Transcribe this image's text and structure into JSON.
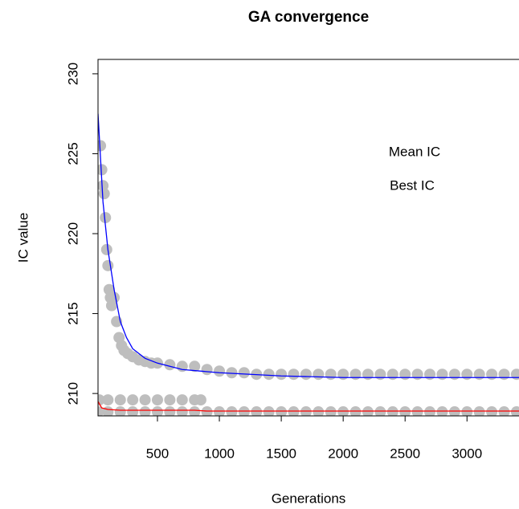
{
  "chart_data": {
    "type": "line",
    "title": "GA convergence",
    "xlabel": "Generations",
    "ylabel": "IC value",
    "xlim": [
      20,
      3420
    ],
    "ylim": [
      208.6,
      230.9
    ],
    "xticks": [
      500,
      1000,
      1500,
      2000,
      2500,
      3000
    ],
    "yticks": [
      210,
      215,
      220,
      225,
      230
    ],
    "series": [
      {
        "name": "Mean IC",
        "color": "#0000ff",
        "x": [
          20,
          60,
          100,
          150,
          200,
          250,
          300,
          400,
          500,
          700,
          1000,
          1500,
          2000,
          2500,
          3000,
          3420
        ],
        "values": [
          227.5,
          222,
          219,
          216.5,
          214.5,
          213.5,
          212.8,
          212.2,
          211.9,
          211.5,
          211.3,
          211.1,
          211.0,
          211.0,
          211.0,
          211.0
        ]
      },
      {
        "name": "Best IC",
        "color": "#ff0000",
        "x": [
          20,
          50,
          100,
          200,
          400,
          800,
          900,
          1500,
          3420
        ],
        "values": [
          209.5,
          209.1,
          209.0,
          208.95,
          208.95,
          208.95,
          208.9,
          208.9,
          208.9
        ]
      }
    ],
    "points": {
      "color": "#bebebe",
      "x": [
        40,
        50,
        60,
        70,
        80,
        90,
        100,
        110,
        120,
        130,
        150,
        170,
        190,
        210,
        230,
        260,
        300,
        350,
        400,
        450,
        500,
        600,
        700,
        800,
        900,
        1000,
        1100,
        1200,
        1300,
        1400,
        1500,
        1600,
        1700,
        1800,
        1900,
        2000,
        2100,
        2200,
        2300,
        2400,
        2500,
        2600,
        2700,
        2800,
        2900,
        3000,
        3100,
        3200,
        3300,
        3400,
        30,
        100,
        200,
        300,
        400,
        500,
        600,
        700,
        800,
        850,
        20,
        100,
        200,
        300,
        400,
        500,
        600,
        700,
        800,
        900,
        1000,
        1100,
        1200,
        1300,
        1400,
        1500,
        1600,
        1700,
        1800,
        1900,
        2000,
        2100,
        2200,
        2300,
        2400,
        2500,
        2600,
        2700,
        2800,
        2900,
        3000,
        3100,
        3200,
        3300,
        3400
      ],
      "y": [
        225.5,
        224,
        223,
        222.5,
        221,
        219,
        218,
        216.5,
        216,
        215.5,
        216,
        214.5,
        213.5,
        213,
        212.7,
        212.5,
        212.3,
        212.1,
        212.0,
        211.9,
        211.9,
        211.8,
        211.7,
        211.7,
        211.5,
        211.4,
        211.3,
        211.3,
        211.2,
        211.2,
        211.2,
        211.2,
        211.2,
        211.2,
        211.2,
        211.2,
        211.2,
        211.2,
        211.2,
        211.2,
        211.2,
        211.2,
        211.2,
        211.2,
        211.2,
        211.2,
        211.2,
        211.2,
        211.2,
        211.2,
        209.6,
        209.6,
        209.6,
        209.6,
        209.6,
        209.6,
        209.6,
        209.6,
        209.6,
        209.6,
        208.85,
        208.85,
        208.85,
        208.85,
        208.85,
        208.85,
        208.85,
        208.85,
        208.85,
        208.85,
        208.85,
        208.85,
        208.85,
        208.85,
        208.85,
        208.85,
        208.85,
        208.85,
        208.85,
        208.85,
        208.85,
        208.85,
        208.85,
        208.85,
        208.85,
        208.85,
        208.85,
        208.85,
        208.85,
        208.85,
        208.85,
        208.85,
        208.85,
        208.85,
        208.85
      ]
    }
  }
}
